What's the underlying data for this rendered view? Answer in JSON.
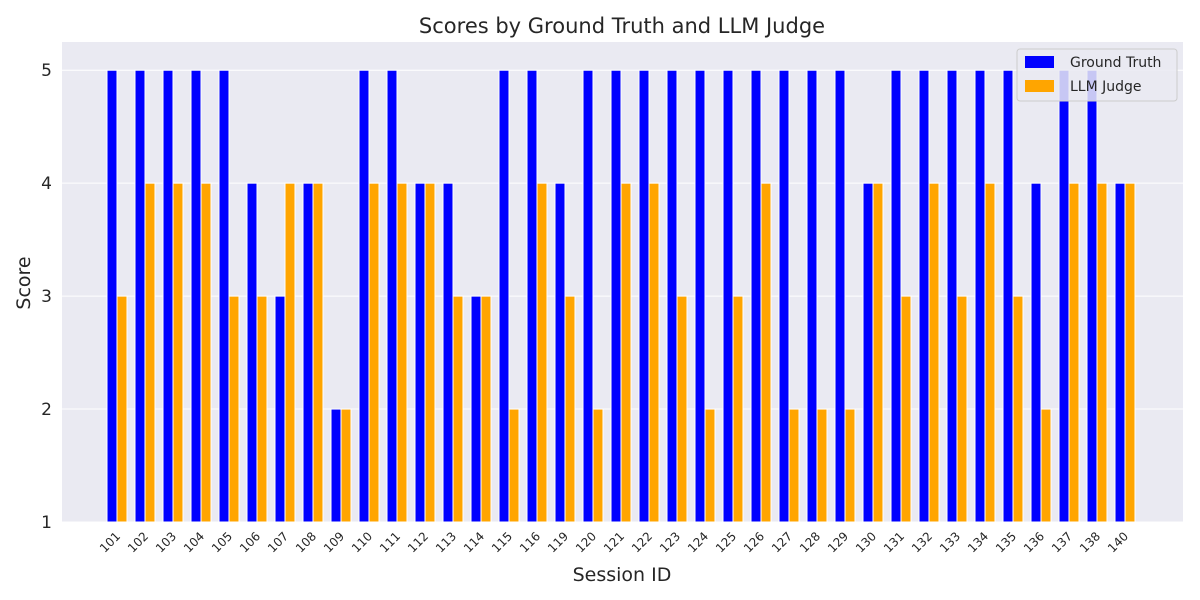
{
  "chart_data": {
    "type": "bar",
    "title": "Scores by Ground Truth and LLM Judge",
    "xlabel": "Session ID",
    "ylabel": "Score",
    "ylim": [
      1,
      5.25
    ],
    "yticks": [
      1,
      2,
      3,
      4,
      5
    ],
    "grid": true,
    "legend_position": "top-right",
    "categories": [
      "101",
      "102",
      "103",
      "104",
      "105",
      "106",
      "107",
      "108",
      "109",
      "110",
      "111",
      "112",
      "113",
      "114",
      "115",
      "116",
      "119",
      "120",
      "121",
      "122",
      "123",
      "124",
      "125",
      "126",
      "127",
      "128",
      "129",
      "130",
      "131",
      "132",
      "133",
      "134",
      "135",
      "136",
      "137",
      "138",
      "140"
    ],
    "series": [
      {
        "name": "Ground Truth",
        "color": "#0000ff",
        "values": [
          5,
          5,
          5,
          5,
          5,
          4,
          3,
          4,
          2,
          5,
          5,
          4,
          4,
          3,
          5,
          5,
          4,
          5,
          5,
          5,
          5,
          5,
          5,
          5,
          5,
          5,
          5,
          4,
          5,
          5,
          5,
          5,
          5,
          4,
          5,
          5,
          4
        ]
      },
      {
        "name": "LLM Judge",
        "color": "#ffa500",
        "values": [
          3,
          4,
          4,
          4,
          3,
          3,
          4,
          4,
          2,
          4,
          4,
          4,
          3,
          3,
          2,
          4,
          3,
          2,
          4,
          4,
          3,
          2,
          3,
          4,
          2,
          2,
          2,
          4,
          3,
          4,
          3,
          4,
          3,
          2,
          4,
          4,
          4
        ]
      }
    ],
    "colors": {
      "plot_background": "#eaeaf2",
      "grid": "#ffffff"
    }
  }
}
